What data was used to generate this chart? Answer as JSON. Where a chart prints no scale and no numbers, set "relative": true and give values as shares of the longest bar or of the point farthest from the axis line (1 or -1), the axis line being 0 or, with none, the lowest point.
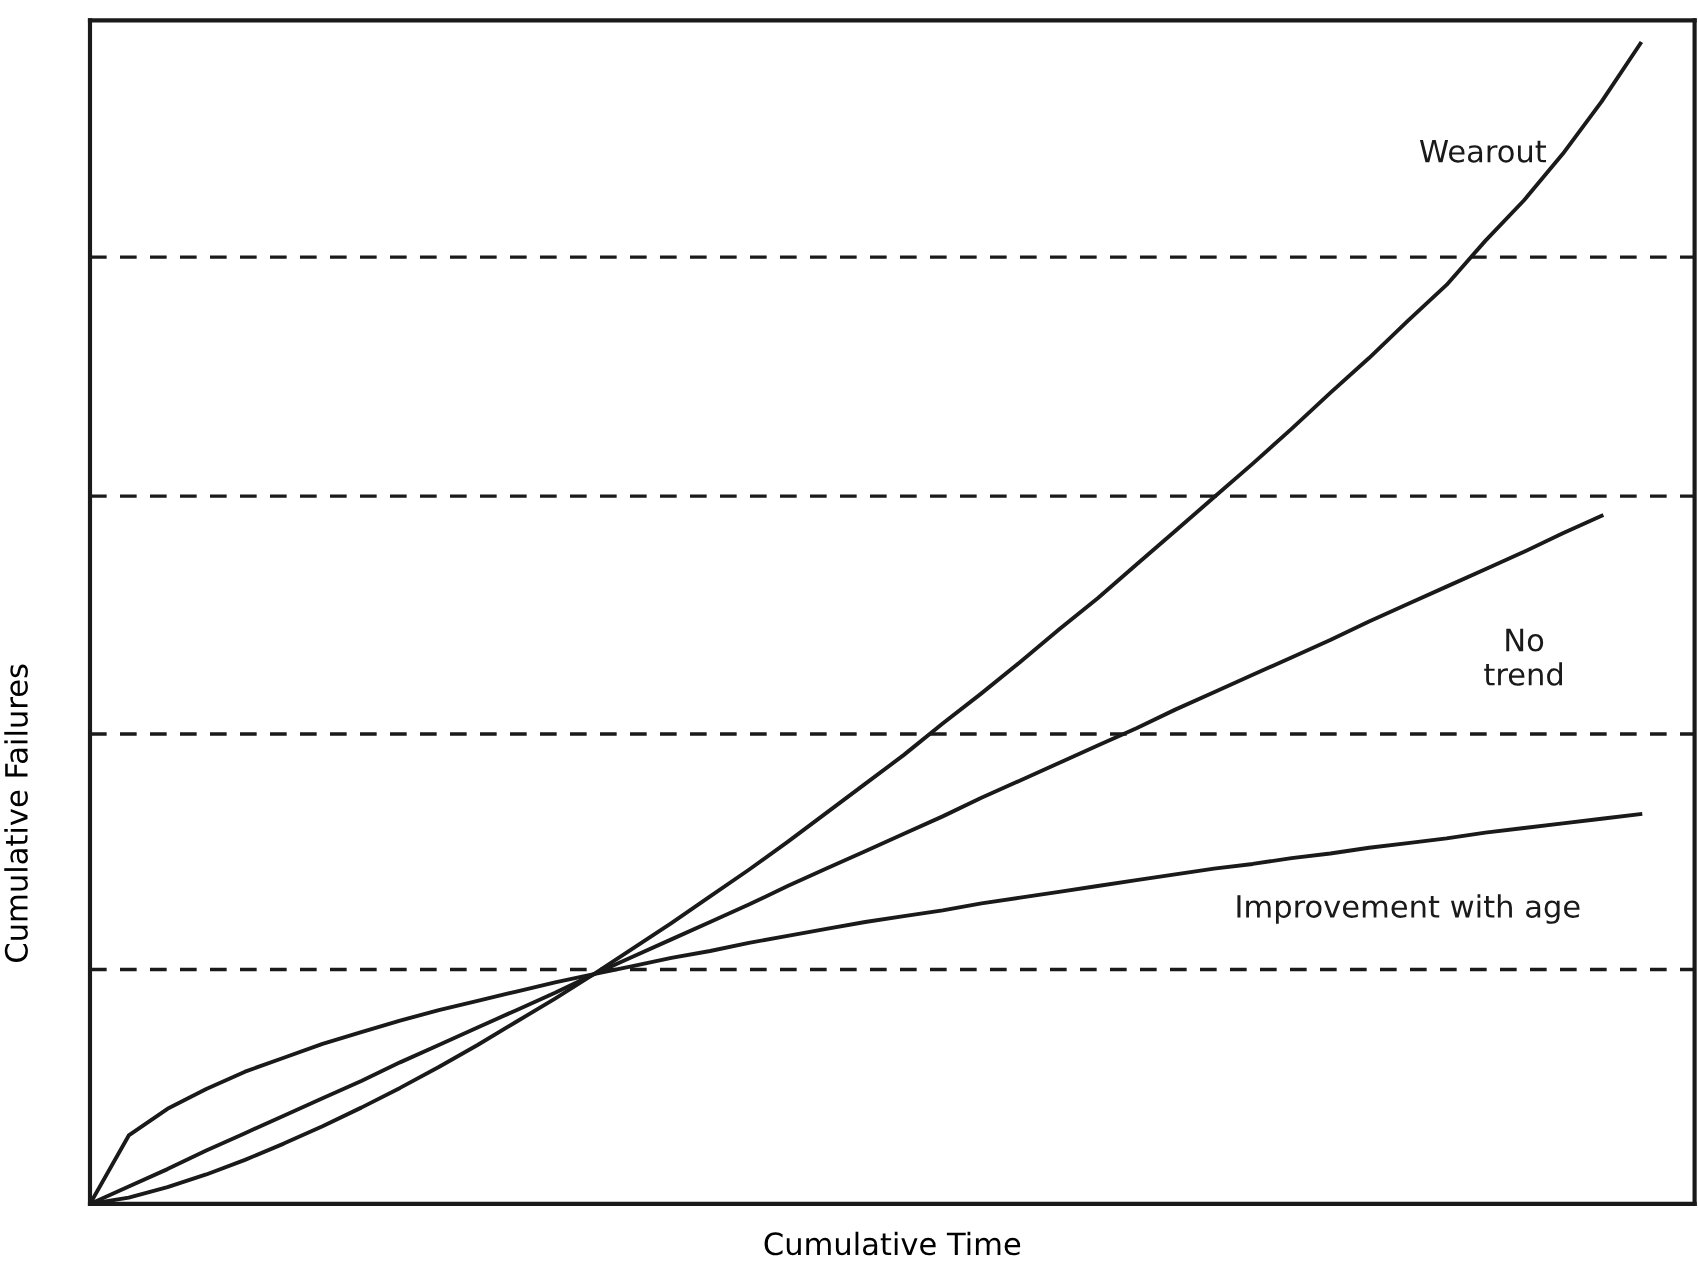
{
  "chart_data": {
    "type": "line",
    "relative": true,
    "xlabel": "Cumulative Time",
    "ylabel": "Cumulative Failures",
    "legend": false,
    "marker": "none",
    "line_style": "solid",
    "categories": [
      null,
      null,
      null,
      null,
      null,
      null,
      null,
      null,
      null,
      null,
      null,
      null,
      null,
      null,
      null,
      null,
      null,
      null,
      null,
      null,
      null,
      null,
      null,
      null,
      null,
      null,
      null,
      null,
      null,
      null,
      null,
      null,
      null,
      null,
      null,
      null,
      null,
      null,
      null,
      null,
      null
    ],
    "ref_lines": [
      {
        "axis": "y",
        "value": 0.202,
        "color": "#1a1a1a",
        "line_style": "dashed"
      },
      {
        "axis": "y",
        "value": 0.405,
        "color": "#1a1a1a",
        "line_style": "dashed"
      },
      {
        "axis": "y",
        "value": 0.61,
        "color": "#1a1a1a",
        "line_style": "dashed"
      },
      {
        "axis": "y",
        "value": 0.816,
        "color": "#1a1a1a",
        "line_style": "dashed"
      }
    ],
    "series": [
      {
        "name": "Wearout",
        "color": "#1a1a1a",
        "values": [
          0,
          0.0055,
          0.0144,
          0.0254,
          0.038,
          0.052,
          0.067,
          0.083,
          0.1,
          0.118,
          0.137,
          0.157,
          0.177,
          0.198,
          0.22,
          0.242,
          0.265,
          0.288,
          0.312,
          0.337,
          0.362,
          0.387,
          0.414,
          0.44,
          0.467,
          0.495,
          0.522,
          0.551,
          0.58,
          0.609,
          0.638,
          0.668,
          0.699,
          0.729,
          0.761,
          0.792,
          0.83,
          0.865,
          0.905,
          0.95,
          1.0
        ]
      },
      {
        "name": "No\ntrend",
        "color": "#1a1a1a",
        "values": [
          0,
          0.015,
          0.03,
          0.046,
          0.061,
          0.076,
          0.091,
          0.106,
          0.122,
          0.137,
          0.152,
          0.167,
          0.182,
          0.198,
          0.213,
          0.228,
          0.243,
          0.258,
          0.274,
          0.289,
          0.304,
          0.319,
          0.334,
          0.35,
          0.365,
          0.38,
          0.395,
          0.41,
          0.426,
          0.441,
          0.456,
          0.471,
          0.486,
          0.502,
          0.517,
          0.532,
          0.547,
          0.562,
          0.578,
          0.593,
          null
        ]
      },
      {
        "name": "Improvement with age",
        "color": "#1a1a1a",
        "values": [
          0,
          0.059,
          0.082,
          0.099,
          0.114,
          0.126,
          0.138,
          0.148,
          0.158,
          0.167,
          0.175,
          0.183,
          0.191,
          0.198,
          0.205,
          0.212,
          0.218,
          0.225,
          0.231,
          0.237,
          0.243,
          0.248,
          0.253,
          0.259,
          0.264,
          0.269,
          0.274,
          0.279,
          0.284,
          0.289,
          0.293,
          0.298,
          0.302,
          0.307,
          0.311,
          0.315,
          0.32,
          0.324,
          0.328,
          0.332,
          0.336
        ]
      }
    ]
  }
}
